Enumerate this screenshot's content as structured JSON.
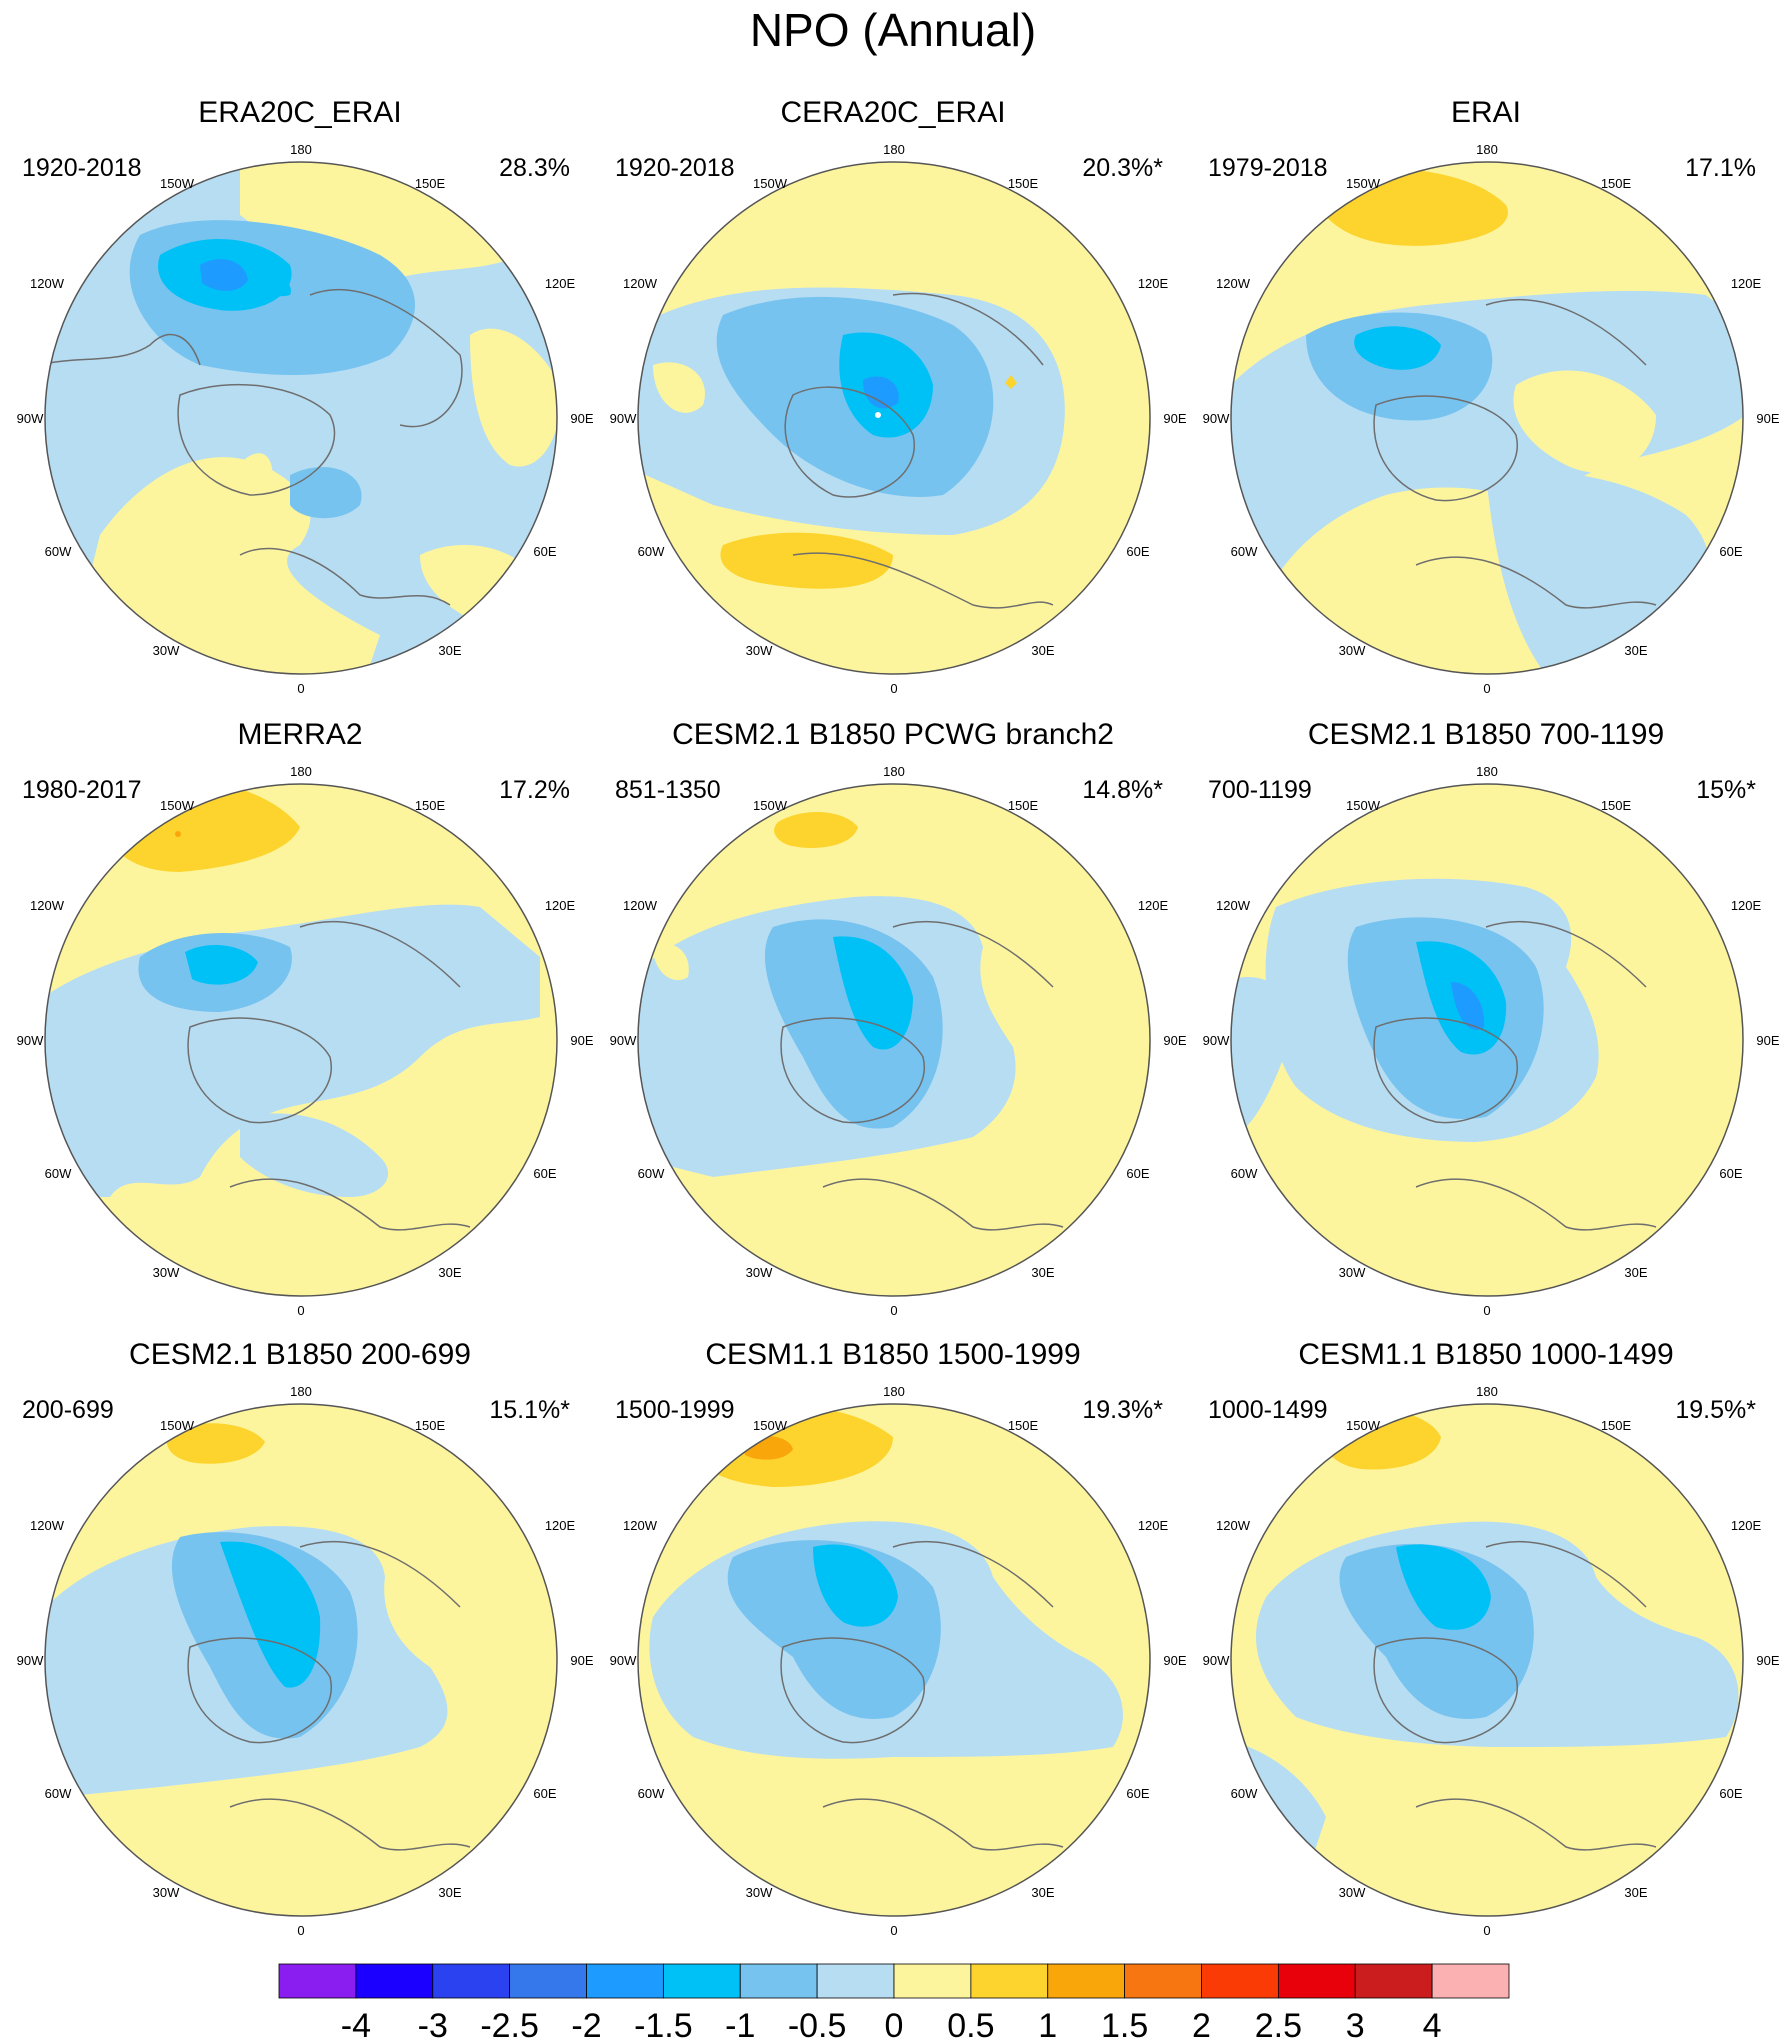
{
  "title": "NPO (Annual)",
  "colors": {
    "background": "#ffffff",
    "land_outline": "#6e6e6e",
    "neg_0_5": "#b7ddf3",
    "neg_1": "#77c3ef",
    "neg_1_5": "#00c1f6",
    "neg_2": "#1e9bff",
    "pos_0_5": "#fdf59e",
    "pos_1": "#fdd42e",
    "pos_1_5": "#f9a60a"
  },
  "panels": [
    {
      "title": "ERA20C_ERAI",
      "period": "1920-2018",
      "percent": "28.3%"
    },
    {
      "title": "CERA20C_ERAI",
      "period": "1920-2018",
      "percent": "20.3%*"
    },
    {
      "title": "ERAI",
      "period": "1979-2018",
      "percent": "17.1%"
    },
    {
      "title": "MERRA2",
      "period": "1980-2017",
      "percent": "17.2%"
    },
    {
      "title": "CESM2.1 B1850 PCWG branch2",
      "period": "851-1350",
      "percent": "14.8%*"
    },
    {
      "title": "CESM2.1 B1850 700-1199",
      "period": "700-1199",
      "percent": "15%*"
    },
    {
      "title": "CESM2.1 B1850 200-699",
      "period": "200-699",
      "percent": "15.1%*"
    },
    {
      "title": "CESM1.1 B1850 1500-1999",
      "period": "1500-1999",
      "percent": "19.3%*"
    },
    {
      "title": "CESM1.1 B1850 1000-1499",
      "period": "1000-1499",
      "percent": "19.5%*"
    }
  ],
  "longitude_labels": [
    "180",
    "150E",
    "120E",
    "90E",
    "60E",
    "30E",
    "0",
    "30W",
    "60W",
    "90W",
    "120W",
    "150W"
  ],
  "colorbar": {
    "labels": [
      "-4",
      "-3",
      "-2.5",
      "-2",
      "-1.5",
      "-1",
      "-0.5",
      "0",
      "0.5",
      "1",
      "1.5",
      "2",
      "2.5",
      "3",
      "4"
    ],
    "colors": [
      "#8a1ef0",
      "#1c00ff",
      "#2a42f0",
      "#3578eb",
      "#1e9bff",
      "#00c1f6",
      "#77c3ef",
      "#b7ddf3",
      "#fdf59e",
      "#fdd42e",
      "#f9a60a",
      "#f77612",
      "#fb3b06",
      "#e8000b",
      "#cb1d1d",
      "#fbb1b1"
    ]
  }
}
